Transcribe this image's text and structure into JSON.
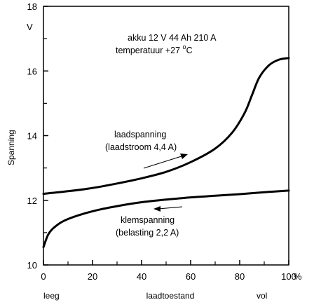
{
  "chart_data": {
    "type": "line",
    "xlim": [
      0,
      100
    ],
    "ylim": [
      10,
      18
    ],
    "x_ticks": [
      "0",
      "20",
      "40",
      "60",
      "80",
      "100"
    ],
    "x_unit": "%",
    "y_ticks": [
      "10",
      "12",
      "14",
      "16",
      "18"
    ],
    "y_unit": "V",
    "ylabel": "Spanning",
    "xlabel": "laadtoestand",
    "x_end_labels": {
      "left": "leeg",
      "right": "vol"
    },
    "annotation": {
      "line1": "akku 12 V 44 Ah 210 A",
      "line2_prefix": "temperatuur +27 ",
      "line2_degree": "o",
      "line2_unit": "C"
    },
    "series": [
      {
        "name": "laadspanning",
        "label_line1": "laadspanning",
        "label_line2": "(laadstroom 4,4 A)",
        "points": [
          [
            0,
            12.2
          ],
          [
            10,
            12.28
          ],
          [
            20,
            12.38
          ],
          [
            30,
            12.52
          ],
          [
            40,
            12.68
          ],
          [
            50,
            12.88
          ],
          [
            60,
            13.18
          ],
          [
            70,
            13.6
          ],
          [
            77,
            14.1
          ],
          [
            82,
            14.7
          ],
          [
            85,
            15.25
          ],
          [
            88,
            15.8
          ],
          [
            92,
            16.18
          ],
          [
            96,
            16.35
          ],
          [
            100,
            16.4
          ]
        ]
      },
      {
        "name": "klemspanning",
        "label_line1": "klemspanning",
        "label_line2": "(belasting 2,2 A)",
        "points": [
          [
            0,
            10.55
          ],
          [
            2,
            10.95
          ],
          [
            5,
            11.2
          ],
          [
            10,
            11.42
          ],
          [
            20,
            11.66
          ],
          [
            30,
            11.82
          ],
          [
            40,
            11.94
          ],
          [
            50,
            12.02
          ],
          [
            60,
            12.09
          ],
          [
            70,
            12.14
          ],
          [
            80,
            12.19
          ],
          [
            90,
            12.25
          ],
          [
            100,
            12.3
          ]
        ]
      }
    ]
  }
}
